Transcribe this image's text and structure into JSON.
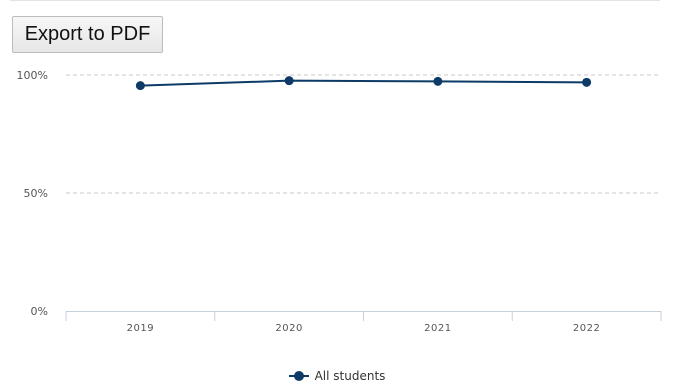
{
  "toolbar": {
    "export_label": "Export to PDF"
  },
  "colors": {
    "series": "#0d3a66",
    "grid": "#c8c8c8",
    "axis": "#c6d0dc"
  },
  "chart_data": {
    "type": "line",
    "categories": [
      "2019",
      "2020",
      "2021",
      "2022"
    ],
    "series": [
      {
        "name": "All students",
        "values": [
          95.5,
          97.6,
          97.3,
          96.9
        ]
      }
    ],
    "ylim": [
      0,
      100
    ],
    "yticks": [
      0,
      50,
      100
    ],
    "ytick_labels": [
      "0%",
      "50%",
      "100%"
    ],
    "grid": true,
    "legend": "bottom-center"
  }
}
